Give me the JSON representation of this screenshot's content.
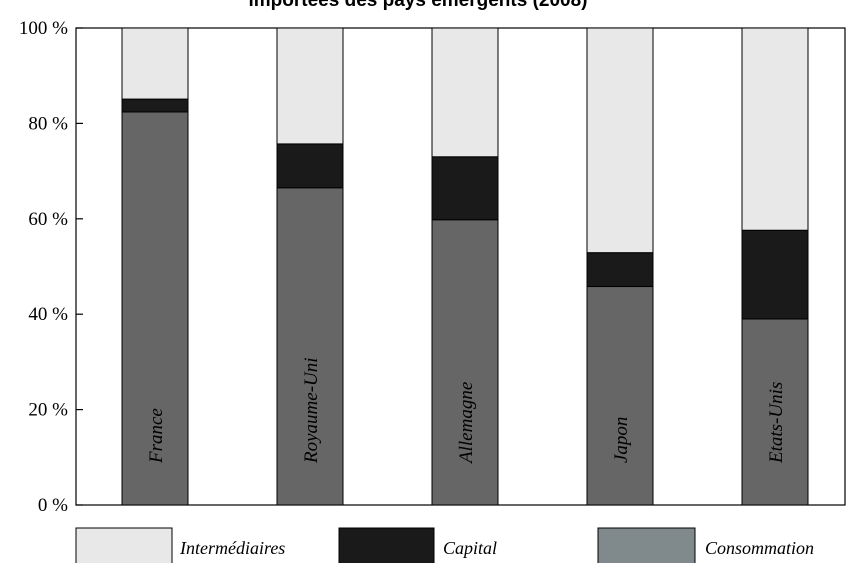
{
  "chart_data": {
    "type": "bar",
    "stacked": true,
    "percent": true,
    "title": "importées des pays émergents (2008)",
    "categories": [
      "France",
      "Royaume-Uni",
      "Allemagne",
      "Japon",
      "Etats-Unis"
    ],
    "series": [
      {
        "name": "Consommation",
        "color": "#666666",
        "values": [
          82.4,
          66.5,
          59.8,
          45.8,
          39.0
        ]
      },
      {
        "name": "Capital",
        "color": "#1a1a1a",
        "values": [
          2.7,
          9.2,
          13.2,
          7.1,
          18.6
        ]
      },
      {
        "name": "Intermédiaires",
        "color": "#e8e8e8",
        "values": [
          14.9,
          24.3,
          27.0,
          47.1,
          42.4
        ]
      }
    ],
    "legend": [
      {
        "label": "Intermédiaires",
        "color": "#e8e8e8"
      },
      {
        "label": "Capital",
        "color": "#1a1a1a"
      },
      {
        "label": "Consommation",
        "color": "#808a8d"
      }
    ],
    "yticks": [
      "0 %",
      "20 %",
      "40 %",
      "60 %",
      "80 %",
      "100 %"
    ],
    "ylim": [
      0,
      100
    ],
    "grid": false,
    "legend_position": "bottom"
  }
}
